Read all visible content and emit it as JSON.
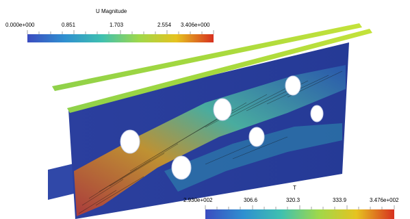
{
  "legend_u": {
    "title": "U Magnitude",
    "labels": [
      "0.000e+000",
      "0.851",
      "1.703",
      "2.554",
      "3.406e+000"
    ]
  },
  "legend_t": {
    "title": "T",
    "labels": [
      "2.930e+002",
      "306.6",
      "320.3",
      "333.9",
      "3.476e+002"
    ]
  },
  "colors": {
    "cmap_low": "#3b4cc0",
    "cmap_mid": "#9fd84a",
    "cmap_high": "#d7301f",
    "background": "#ffffff"
  }
}
